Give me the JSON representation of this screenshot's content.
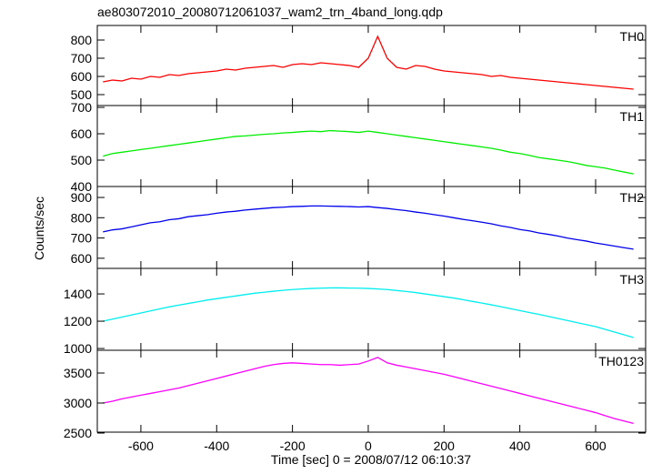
{
  "chart_data": {
    "type": "line",
    "title": "ae803072010_20080712061037_wam2_trn_4band_long.qdp",
    "xlabel": "Time [sec] 0 = 2008/07/12 06:10:37",
    "ylabel": "Counts/sec",
    "xlim": [
      -715,
      732
    ],
    "xticks": [
      -600,
      -400,
      -200,
      0,
      200,
      400,
      600
    ],
    "x": [
      -700,
      -675,
      -650,
      -625,
      -600,
      -575,
      -550,
      -525,
      -500,
      -475,
      -450,
      -425,
      -400,
      -375,
      -350,
      -325,
      -300,
      -275,
      -250,
      -225,
      -200,
      -175,
      -150,
      -125,
      -100,
      -75,
      -50,
      -25,
      0,
      25,
      50,
      75,
      100,
      125,
      150,
      175,
      200,
      225,
      250,
      275,
      300,
      325,
      350,
      375,
      400,
      425,
      450,
      475,
      500,
      525,
      550,
      575,
      600,
      625,
      650,
      675,
      700
    ],
    "series": [
      {
        "name": "TH0",
        "color": "#ff0000",
        "ylim": [
          440,
          880
        ],
        "yticks": [
          500,
          600,
          700,
          800
        ],
        "values": [
          570,
          580,
          575,
          590,
          585,
          600,
          595,
          610,
          605,
          615,
          620,
          625,
          630,
          640,
          635,
          645,
          650,
          655,
          660,
          650,
          665,
          670,
          665,
          675,
          670,
          665,
          660,
          650,
          700,
          820,
          700,
          650,
          640,
          660,
          655,
          640,
          630,
          625,
          620,
          615,
          610,
          600,
          605,
          595,
          590,
          585,
          580,
          575,
          570,
          565,
          560,
          555,
          550,
          545,
          540,
          535,
          530
        ]
      },
      {
        "name": "TH1",
        "color": "#00ee00",
        "ylim": [
          400,
          707
        ],
        "yticks": [
          400,
          500,
          600,
          700
        ],
        "values": [
          515,
          525,
          530,
          535,
          540,
          545,
          550,
          555,
          560,
          565,
          570,
          575,
          580,
          585,
          590,
          592,
          595,
          598,
          600,
          603,
          605,
          608,
          610,
          608,
          612,
          610,
          608,
          605,
          610,
          605,
          600,
          595,
          590,
          585,
          580,
          575,
          570,
          565,
          560,
          555,
          550,
          545,
          538,
          530,
          525,
          518,
          510,
          505,
          500,
          495,
          488,
          480,
          475,
          470,
          462,
          455,
          448
        ]
      },
      {
        "name": "TH2",
        "color": "#0000ee",
        "ylim": [
          550,
          954
        ],
        "yticks": [
          600,
          700,
          800,
          900
        ],
        "values": [
          730,
          740,
          745,
          755,
          765,
          775,
          780,
          790,
          795,
          805,
          810,
          815,
          822,
          828,
          832,
          838,
          842,
          846,
          850,
          852,
          855,
          856,
          858,
          858,
          857,
          856,
          855,
          853,
          855,
          850,
          846,
          840,
          835,
          828,
          822,
          815,
          808,
          800,
          792,
          785,
          778,
          770,
          760,
          752,
          742,
          735,
          725,
          718,
          710,
          700,
          692,
          685,
          675,
          668,
          660,
          652,
          645
        ]
      },
      {
        "name": "TH3",
        "color": "#00eeee",
        "ylim": [
          987,
          1587
        ],
        "yticks": [
          1000,
          1200,
          1400
        ],
        "values": [
          1200,
          1215,
          1230,
          1245,
          1260,
          1275,
          1290,
          1305,
          1318,
          1330,
          1342,
          1355,
          1365,
          1375,
          1385,
          1395,
          1405,
          1412,
          1420,
          1426,
          1432,
          1436,
          1440,
          1442,
          1444,
          1444,
          1443,
          1442,
          1440,
          1436,
          1432,
          1425,
          1418,
          1410,
          1400,
          1390,
          1380,
          1370,
          1358,
          1345,
          1333,
          1320,
          1306,
          1292,
          1278,
          1264,
          1250,
          1235,
          1220,
          1205,
          1190,
          1175,
          1160,
          1140,
          1120,
          1100,
          1080
        ]
      },
      {
        "name": "TH0123",
        "color": "#ff00ff",
        "ylim": [
          2515,
          3879
        ],
        "yticks": [
          2500,
          3000,
          3500
        ],
        "values": [
          3000,
          3030,
          3070,
          3100,
          3130,
          3160,
          3190,
          3220,
          3250,
          3290,
          3330,
          3370,
          3410,
          3450,
          3490,
          3530,
          3570,
          3610,
          3640,
          3660,
          3670,
          3660,
          3650,
          3640,
          3640,
          3630,
          3640,
          3650,
          3700,
          3760,
          3670,
          3630,
          3600,
          3570,
          3540,
          3510,
          3480,
          3440,
          3400,
          3360,
          3320,
          3280,
          3240,
          3200,
          3160,
          3120,
          3080,
          3040,
          3000,
          2960,
          2920,
          2880,
          2840,
          2790,
          2740,
          2700,
          2660
        ]
      }
    ]
  }
}
